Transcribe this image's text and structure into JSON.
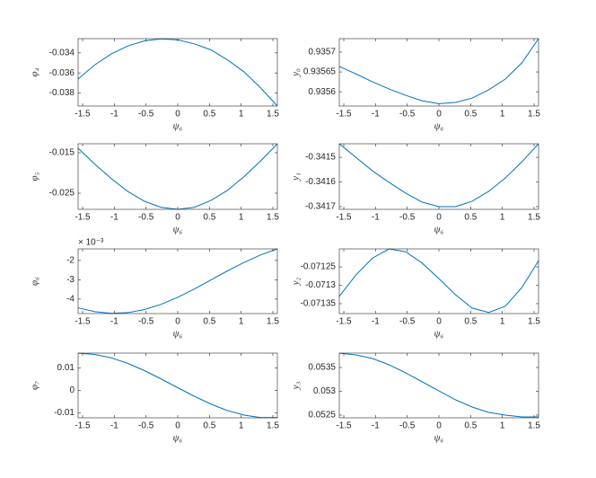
{
  "chart_data": [
    {
      "type": "line",
      "xlabel": "ψ₆",
      "ylabel": "φ₄",
      "color": "#0072bd",
      "x": [
        -1.571,
        -1.309,
        -1.047,
        -0.785,
        -0.524,
        -0.262,
        0,
        0.262,
        0.524,
        0.785,
        1.047,
        1.309,
        1.571
      ],
      "values": [
        -0.0366,
        -0.0352,
        -0.0341,
        -0.0333,
        -0.0328,
        -0.0326,
        -0.0327,
        -0.0331,
        -0.0337,
        -0.0347,
        -0.0359,
        -0.0375,
        -0.0393
      ],
      "xlim": [
        -1.571,
        1.571
      ],
      "xticks": [
        -1.5,
        -1,
        -0.5,
        0,
        0.5,
        1,
        1.5
      ],
      "ylim": [
        -0.0393,
        -0.03258
      ],
      "yticks": [
        -0.038,
        -0.036,
        -0.034
      ]
    },
    {
      "type": "line",
      "xlabel": "ψ₆",
      "ylabel": "y₀",
      "color": "#0072bd",
      "x": [
        -1.571,
        -1.309,
        -1.047,
        -0.785,
        -0.524,
        -0.262,
        0,
        0.262,
        0.524,
        0.785,
        1.047,
        1.309,
        1.571
      ],
      "values": [
        0.935664,
        0.935645,
        0.935625,
        0.935607,
        0.935591,
        0.935577,
        0.93557,
        0.935573,
        0.935584,
        0.935605,
        0.935632,
        0.935673,
        0.935734
      ],
      "xlim": [
        -1.571,
        1.571
      ],
      "xticks": [
        -1.5,
        -1,
        -0.5,
        0,
        0.5,
        1,
        1.5
      ],
      "ylim": [
        0.935564,
        0.935734
      ],
      "yticks": [
        0.9356,
        0.93565,
        0.9357
      ]
    },
    {
      "type": "line",
      "xlabel": "ψ₆",
      "ylabel": "φ₅",
      "color": "#0072bd",
      "x": [
        -1.571,
        -1.309,
        -1.047,
        -0.785,
        -0.524,
        -0.262,
        0,
        0.262,
        0.524,
        0.785,
        1.047,
        1.309,
        1.571
      ],
      "values": [
        -0.0139,
        -0.0178,
        -0.0214,
        -0.0246,
        -0.027,
        -0.0285,
        -0.029,
        -0.0285,
        -0.0268,
        -0.0243,
        -0.0209,
        -0.017,
        -0.0128
      ],
      "xlim": [
        -1.571,
        1.571
      ],
      "xticks": [
        -1.5,
        -1,
        -0.5,
        0,
        0.5,
        1,
        1.5
      ],
      "ylim": [
        -0.029,
        -0.01278
      ],
      "yticks": [
        -0.025,
        -0.015
      ]
    },
    {
      "type": "line",
      "xlabel": "ψ₆",
      "ylabel": "y₁",
      "color": "#0072bd",
      "x": [
        -1.571,
        -1.309,
        -1.047,
        -0.785,
        -0.524,
        -0.262,
        0,
        0.262,
        0.524,
        0.785,
        1.047,
        1.309,
        1.571
      ],
      "values": [
        -0.341445,
        -0.3415,
        -0.341555,
        -0.341602,
        -0.341645,
        -0.341682,
        -0.3417,
        -0.3417,
        -0.341678,
        -0.341638,
        -0.341584,
        -0.341518,
        -0.341445
      ],
      "xlim": [
        -1.571,
        1.571
      ],
      "xticks": [
        -1.5,
        -1,
        -0.5,
        0,
        0.5,
        1,
        1.5
      ],
      "ylim": [
        -0.341711,
        -0.341445
      ],
      "yticks": [
        -0.3417,
        -0.3416,
        -0.3415
      ]
    },
    {
      "type": "line",
      "xlabel": "ψ₆",
      "ylabel": "φ₆",
      "exponent_label": "× 10⁻³",
      "color": "#0072bd",
      "x": [
        -1.571,
        -1.309,
        -1.047,
        -0.785,
        -0.524,
        -0.262,
        0,
        0.262,
        0.524,
        0.785,
        1.047,
        1.309,
        1.571
      ],
      "values": [
        -4.45,
        -4.65,
        -4.74,
        -4.7,
        -4.54,
        -4.27,
        -3.91,
        -3.48,
        -3.01,
        -2.54,
        -2.1,
        -1.71,
        -1.4
      ],
      "xlim": [
        -1.571,
        1.571
      ],
      "xticks": [
        -1.5,
        -1,
        -0.5,
        0,
        0.5,
        1,
        1.5
      ],
      "ylim": [
        -4.75,
        -1.4
      ],
      "yticks": [
        -4,
        -3,
        -2
      ]
    },
    {
      "type": "line",
      "xlabel": "ψ₆",
      "ylabel": "y₂",
      "color": "#0072bd",
      "x": [
        -1.571,
        -1.309,
        -1.047,
        -0.785,
        -0.524,
        -0.262,
        0,
        0.262,
        0.524,
        0.785,
        1.047,
        1.309,
        1.571
      ],
      "values": [
        -0.07133,
        -0.071272,
        -0.071226,
        -0.071201,
        -0.071209,
        -0.07124,
        -0.071282,
        -0.071326,
        -0.071362,
        -0.071374,
        -0.071357,
        -0.071306,
        -0.071233
      ],
      "xlim": [
        -1.571,
        1.571
      ],
      "xticks": [
        -1.5,
        -1,
        -0.5,
        0,
        0.5,
        1,
        1.5
      ],
      "ylim": [
        -0.071377,
        -0.071201
      ],
      "yticks": [
        -0.07135,
        -0.0713,
        -0.07125
      ]
    },
    {
      "type": "line",
      "xlabel": "ψ₆",
      "ylabel": "φ₇",
      "color": "#0072bd",
      "x": [
        -1.571,
        -1.309,
        -1.047,
        -0.785,
        -0.524,
        -0.262,
        0,
        0.262,
        0.524,
        0.785,
        1.047,
        1.309,
        1.571
      ],
      "values": [
        0.0166,
        0.016,
        0.0145,
        0.012,
        0.0088,
        0.0051,
        0.0012,
        -0.0026,
        -0.0061,
        -0.009,
        -0.011,
        -0.0121,
        -0.0121
      ],
      "xlim": [
        -1.571,
        1.571
      ],
      "xticks": [
        -1.5,
        -1,
        -0.5,
        0,
        0.5,
        1,
        1.5
      ],
      "ylim": [
        -0.0122,
        0.0166
      ],
      "yticks": [
        -0.01,
        0,
        0.01
      ]
    },
    {
      "type": "line",
      "xlabel": "ψ₆",
      "ylabel": "y₃",
      "color": "#0072bd",
      "x": [
        -1.571,
        -1.309,
        -1.047,
        -0.785,
        -0.524,
        -0.262,
        0,
        0.262,
        0.524,
        0.785,
        1.047,
        1.309,
        1.571
      ],
      "values": [
        0.053802,
        0.053764,
        0.053689,
        0.053557,
        0.053387,
        0.053198,
        0.053009,
        0.052821,
        0.05267,
        0.052557,
        0.0525,
        0.052462,
        0.052462
      ],
      "xlim": [
        -1.571,
        1.571
      ],
      "xticks": [
        -1.5,
        -1,
        -0.5,
        0,
        0.5,
        1,
        1.5
      ],
      "ylim": [
        0.052443,
        0.053802
      ],
      "yticks": [
        0.0525,
        0.053,
        0.0535
      ]
    }
  ]
}
